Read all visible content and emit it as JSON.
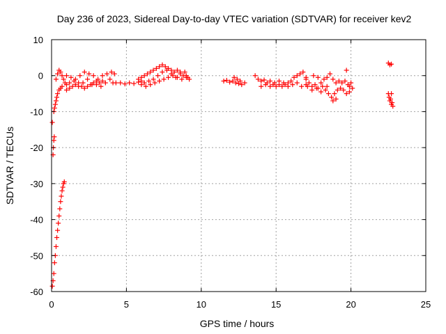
{
  "chart_data": {
    "type": "scatter",
    "title": "Day 236 of 2023, Sidereal Day-to-day VTEC variation (SDTVAR) for receiver kev2",
    "xlabel": "GPS time / hours",
    "ylabel": "SDTVAR / TECUs",
    "xlim": [
      0,
      25
    ],
    "ylim": [
      -60,
      10
    ],
    "xticks": [
      0,
      5,
      10,
      15,
      20,
      25
    ],
    "yticks": [
      -60,
      -50,
      -40,
      -30,
      -20,
      -10,
      0,
      10
    ],
    "grid": true,
    "marker": "+",
    "series_color": "#ff0000",
    "series": [
      {
        "name": "SDTVAR",
        "points": [
          [
            0.05,
            -58.5
          ],
          [
            0.1,
            -57
          ],
          [
            0.15,
            -55
          ],
          [
            0.2,
            -52
          ],
          [
            0.25,
            -50
          ],
          [
            0.3,
            -47.5
          ],
          [
            0.35,
            -45
          ],
          [
            0.4,
            -43
          ],
          [
            0.45,
            -41
          ],
          [
            0.5,
            -39
          ],
          [
            0.55,
            -37
          ],
          [
            0.6,
            -35
          ],
          [
            0.65,
            -33.5
          ],
          [
            0.7,
            -32
          ],
          [
            0.75,
            -31
          ],
          [
            0.8,
            -30
          ],
          [
            0.85,
            -29.5
          ],
          [
            0.05,
            -13
          ],
          [
            0.1,
            -22
          ],
          [
            0.12,
            -20
          ],
          [
            0.15,
            -18
          ],
          [
            0.18,
            -17
          ],
          [
            0.15,
            -10
          ],
          [
            0.2,
            -9
          ],
          [
            0.25,
            -8
          ],
          [
            0.3,
            -7
          ],
          [
            0.35,
            -6
          ],
          [
            0.4,
            -5
          ],
          [
            0.5,
            -4
          ],
          [
            0.6,
            -3.5
          ],
          [
            0.7,
            -3
          ],
          [
            0.3,
            -1
          ],
          [
            0.4,
            0.5
          ],
          [
            0.5,
            1.5
          ],
          [
            0.6,
            1
          ],
          [
            0.7,
            0
          ],
          [
            0.8,
            -1
          ],
          [
            0.9,
            -2
          ],
          [
            1.0,
            -2.5
          ],
          [
            1.0,
            -4
          ],
          [
            1.2,
            -3.5
          ],
          [
            1.4,
            -3
          ],
          [
            1.6,
            -2.5
          ],
          [
            1.8,
            -2
          ],
          [
            2.0,
            -3
          ],
          [
            2.2,
            -3.5
          ],
          [
            2.4,
            -3
          ],
          [
            2.6,
            -2.5
          ],
          [
            2.8,
            -2
          ],
          [
            3.0,
            -2.5
          ],
          [
            3.2,
            -2
          ],
          [
            3.4,
            -1.5
          ],
          [
            1.0,
            0
          ],
          [
            1.3,
            -0.5
          ],
          [
            1.6,
            -1
          ],
          [
            1.9,
            0
          ],
          [
            2.2,
            1
          ],
          [
            2.5,
            0.5
          ],
          [
            2.8,
            0
          ],
          [
            3.1,
            -1
          ],
          [
            3.4,
            0
          ],
          [
            3.7,
            0.5
          ],
          [
            4.0,
            1
          ],
          [
            4.2,
            0.5
          ],
          [
            1.2,
            -2
          ],
          [
            1.5,
            -1.5
          ],
          [
            1.8,
            -3
          ],
          [
            2.1,
            -2
          ],
          [
            2.4,
            -1
          ],
          [
            2.7,
            -2.5
          ],
          [
            3.0,
            -1.5
          ],
          [
            3.3,
            -3
          ],
          [
            3.6,
            -2
          ],
          [
            3.9,
            -1
          ],
          [
            4.1,
            -2
          ],
          [
            4.3,
            -2
          ],
          [
            4.6,
            -2
          ],
          [
            4.9,
            -2.3
          ],
          [
            5.2,
            -2
          ],
          [
            5.5,
            -2.2
          ],
          [
            5.8,
            -1.8
          ],
          [
            6.0,
            -1.5
          ],
          [
            6.2,
            -2
          ],
          [
            5.8,
            -1
          ],
          [
            6.0,
            -0.5
          ],
          [
            6.2,
            0
          ],
          [
            6.4,
            0.5
          ],
          [
            6.6,
            1
          ],
          [
            6.8,
            1.5
          ],
          [
            7.0,
            2
          ],
          [
            7.2,
            2.5
          ],
          [
            7.4,
            3
          ],
          [
            7.6,
            2.5
          ],
          [
            7.8,
            2
          ],
          [
            8.0,
            1.5
          ],
          [
            8.2,
            1
          ],
          [
            8.4,
            1.5
          ],
          [
            8.6,
            1
          ],
          [
            8.8,
            0
          ],
          [
            9.0,
            -0.5
          ],
          [
            9.2,
            -1
          ],
          [
            6.0,
            -2.5
          ],
          [
            6.3,
            -3
          ],
          [
            6.6,
            -2.5
          ],
          [
            6.9,
            -2
          ],
          [
            7.2,
            -1.5
          ],
          [
            7.5,
            -1
          ],
          [
            7.8,
            -0.5
          ],
          [
            8.1,
            0
          ],
          [
            8.4,
            -0.5
          ],
          [
            8.7,
            -1
          ],
          [
            9.0,
            0
          ],
          [
            6.5,
            -1.5
          ],
          [
            6.8,
            -1
          ],
          [
            7.1,
            0
          ],
          [
            7.4,
            1
          ],
          [
            7.7,
            1.5
          ],
          [
            8.0,
            0.5
          ],
          [
            8.3,
            -0.5
          ],
          [
            8.6,
            0.5
          ],
          [
            8.9,
            1
          ],
          [
            9.1,
            -0.5
          ],
          [
            11.5,
            -1.5
          ],
          [
            11.7,
            -1.3
          ],
          [
            11.9,
            -1.8
          ],
          [
            12.1,
            -1.5
          ],
          [
            12.3,
            -2
          ],
          [
            12.5,
            -2.2
          ],
          [
            12.7,
            -2.5
          ],
          [
            12.9,
            -2
          ],
          [
            12.2,
            -0.5
          ],
          [
            12.4,
            -1
          ],
          [
            12.6,
            -1.5
          ],
          [
            13.6,
            0
          ],
          [
            13.8,
            -1
          ],
          [
            14.0,
            -1.5
          ],
          [
            14.2,
            -1.2
          ],
          [
            14.4,
            -2
          ],
          [
            14.6,
            -1.5
          ],
          [
            14.8,
            -2.5
          ],
          [
            15.0,
            -3
          ],
          [
            15.2,
            -2.5
          ],
          [
            15.4,
            -3
          ],
          [
            15.6,
            -2.5
          ],
          [
            15.8,
            -2
          ],
          [
            16.0,
            -1.5
          ],
          [
            16.2,
            -0.5
          ],
          [
            16.4,
            0
          ],
          [
            16.6,
            0.5
          ],
          [
            16.8,
            1
          ],
          [
            17.0,
            -0.5
          ],
          [
            14.0,
            -3
          ],
          [
            14.3,
            -2.5
          ],
          [
            14.6,
            -3
          ],
          [
            14.9,
            -2
          ],
          [
            15.2,
            -1.5
          ],
          [
            15.5,
            -2
          ],
          [
            15.8,
            -3
          ],
          [
            16.1,
            -2.5
          ],
          [
            16.4,
            -2
          ],
          [
            16.7,
            -3
          ],
          [
            17.0,
            -2.5
          ],
          [
            17.0,
            -1
          ],
          [
            17.2,
            -2
          ],
          [
            17.4,
            -3
          ],
          [
            17.6,
            -2.5
          ],
          [
            17.8,
            -3.5
          ],
          [
            18.0,
            -2
          ],
          [
            18.2,
            -1
          ],
          [
            18.4,
            -0.5
          ],
          [
            18.6,
            0.5
          ],
          [
            18.8,
            -1
          ],
          [
            19.0,
            -2
          ],
          [
            19.2,
            -1.5
          ],
          [
            19.4,
            -2
          ],
          [
            19.6,
            -1.5
          ],
          [
            19.8,
            -2.5
          ],
          [
            20.0,
            -2
          ],
          [
            17.5,
            0
          ],
          [
            17.8,
            -0.5
          ],
          [
            18.1,
            -3
          ],
          [
            18.3,
            -4
          ],
          [
            18.5,
            -5
          ],
          [
            18.7,
            -6
          ],
          [
            18.9,
            -5
          ],
          [
            19.1,
            -4
          ],
          [
            19.3,
            -3.5
          ],
          [
            19.5,
            -4
          ],
          [
            19.7,
            -5
          ],
          [
            19.9,
            -4.5
          ],
          [
            17.1,
            -3
          ],
          [
            17.4,
            -4
          ],
          [
            17.7,
            -3.5
          ],
          [
            18.0,
            -4.5
          ],
          [
            18.4,
            -3
          ],
          [
            18.8,
            -7
          ],
          [
            19.0,
            -6.5
          ],
          [
            19.7,
            1.5
          ],
          [
            19.9,
            -3
          ],
          [
            20.1,
            -3.5
          ],
          [
            22.5,
            3.5
          ],
          [
            22.6,
            3
          ],
          [
            22.7,
            3.2
          ],
          [
            22.5,
            -5
          ],
          [
            22.55,
            -6
          ],
          [
            22.6,
            -7
          ],
          [
            22.65,
            -6.5
          ],
          [
            22.7,
            -8
          ],
          [
            22.75,
            -7.5
          ],
          [
            22.8,
            -8.5
          ],
          [
            22.7,
            -5
          ]
        ]
      }
    ]
  }
}
